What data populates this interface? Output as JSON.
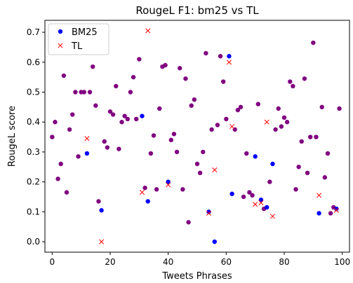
{
  "chart_data": {
    "type": "scatter",
    "title": "RougeL F1:  bm25 vs TL",
    "xlabel": "Tweets Phrases",
    "ylabel": "RougeL score",
    "xlim": [
      -2.5,
      102.5
    ],
    "ylim": [
      -0.035,
      0.74
    ],
    "xticks": [
      0,
      20,
      40,
      60,
      80,
      100
    ],
    "yticks": [
      0.0,
      0.1,
      0.2,
      0.3,
      0.4,
      0.5,
      0.6,
      0.7
    ],
    "grid": false,
    "legend_position": "top-left",
    "series": [
      {
        "name": "BM25",
        "marker": "circle",
        "color": "#0000ff",
        "x": [
          0,
          1,
          2,
          3,
          4,
          5,
          6,
          7,
          8,
          9,
          10,
          11,
          12,
          13,
          14,
          15,
          16,
          17,
          18,
          19,
          20,
          21,
          22,
          23,
          24,
          25,
          26,
          27,
          28,
          29,
          30,
          31,
          32,
          33,
          34,
          35,
          36,
          37,
          38,
          39,
          40,
          41,
          42,
          43,
          44,
          45,
          46,
          47,
          48,
          49,
          50,
          51,
          52,
          53,
          54,
          55,
          56,
          57,
          58,
          59,
          60,
          61,
          62,
          63,
          64,
          65,
          66,
          67,
          68,
          69,
          70,
          71,
          72,
          73,
          74,
          75,
          76,
          77,
          78,
          79,
          80,
          81,
          82,
          83,
          84,
          85,
          86,
          87,
          88,
          89,
          90,
          91,
          92,
          93,
          94,
          95,
          96,
          97,
          98,
          99
        ],
        "y": [
          0.35,
          0.4,
          0.21,
          0.26,
          0.555,
          0.165,
          0.375,
          0.425,
          0.5,
          0.285,
          0.5,
          0.5,
          0.295,
          0.5,
          0.585,
          0.455,
          0.135,
          0.105,
          0.335,
          0.315,
          0.435,
          0.425,
          0.52,
          0.31,
          0.4,
          0.42,
          0.41,
          0.5,
          0.55,
          0.41,
          0.61,
          0.42,
          0.18,
          0.135,
          0.295,
          0.355,
          0.175,
          0.445,
          0.585,
          0.59,
          0.2,
          0.34,
          0.36,
          0.3,
          0.58,
          0.175,
          0.545,
          0.065,
          0.455,
          0.475,
          0.26,
          0.23,
          0.3,
          0.63,
          0.1,
          0.375,
          0.0,
          0.39,
          0.62,
          0.535,
          0.41,
          0.62,
          0.16,
          0.375,
          0.44,
          0.45,
          0.15,
          0.295,
          0.165,
          0.155,
          0.285,
          0.46,
          0.14,
          0.11,
          0.115,
          0.2,
          0.26,
          0.375,
          0.445,
          0.385,
          0.415,
          0.4,
          0.535,
          0.52,
          0.175,
          0.25,
          0.335,
          0.545,
          0.23,
          0.35,
          0.665,
          0.35,
          0.095,
          0.45,
          0.215,
          0.295,
          0.095,
          0.115,
          0.11,
          0.445
        ]
      },
      {
        "name": "TL",
        "marker": "x",
        "color": "#ff0000",
        "x": [
          0,
          1,
          2,
          3,
          4,
          5,
          6,
          7,
          8,
          9,
          10,
          11,
          12,
          13,
          14,
          15,
          16,
          17,
          18,
          19,
          20,
          21,
          22,
          23,
          24,
          25,
          26,
          27,
          28,
          29,
          30,
          31,
          32,
          33,
          34,
          35,
          36,
          37,
          38,
          39,
          40,
          41,
          42,
          43,
          44,
          45,
          46,
          47,
          48,
          49,
          50,
          51,
          52,
          53,
          54,
          55,
          56,
          57,
          58,
          59,
          60,
          61,
          62,
          63,
          64,
          65,
          66,
          67,
          68,
          69,
          70,
          71,
          72,
          73,
          74,
          75,
          76,
          77,
          78,
          79,
          80,
          81,
          82,
          83,
          84,
          85,
          86,
          87,
          88,
          89,
          90,
          91,
          92,
          93,
          94,
          95,
          96,
          97,
          98,
          99
        ],
        "y": [
          0.35,
          0.4,
          0.21,
          0.26,
          0.555,
          0.165,
          0.375,
          0.425,
          0.5,
          0.285,
          0.5,
          0.5,
          0.345,
          0.5,
          0.585,
          0.455,
          0.135,
          0.0,
          0.335,
          0.315,
          0.435,
          0.425,
          0.52,
          0.31,
          0.4,
          0.42,
          0.41,
          0.5,
          0.55,
          0.41,
          0.61,
          0.165,
          0.18,
          0.705,
          0.295,
          0.355,
          0.175,
          0.445,
          0.585,
          0.59,
          0.19,
          0.34,
          0.36,
          0.3,
          0.58,
          0.175,
          0.545,
          0.065,
          0.455,
          0.475,
          0.26,
          0.23,
          0.3,
          0.63,
          0.095,
          0.375,
          0.24,
          0.39,
          0.62,
          0.535,
          0.41,
          0.6,
          0.385,
          0.375,
          0.44,
          0.45,
          0.15,
          0.295,
          0.165,
          0.155,
          0.125,
          0.46,
          0.13,
          0.11,
          0.4,
          0.2,
          0.085,
          0.375,
          0.445,
          0.385,
          0.415,
          0.4,
          0.535,
          0.52,
          0.175,
          0.25,
          0.335,
          0.545,
          0.23,
          0.35,
          0.665,
          0.35,
          0.155,
          0.45,
          0.215,
          0.295,
          0.095,
          0.115,
          0.105,
          0.445
        ]
      }
    ],
    "overlap_color": "#800080"
  }
}
